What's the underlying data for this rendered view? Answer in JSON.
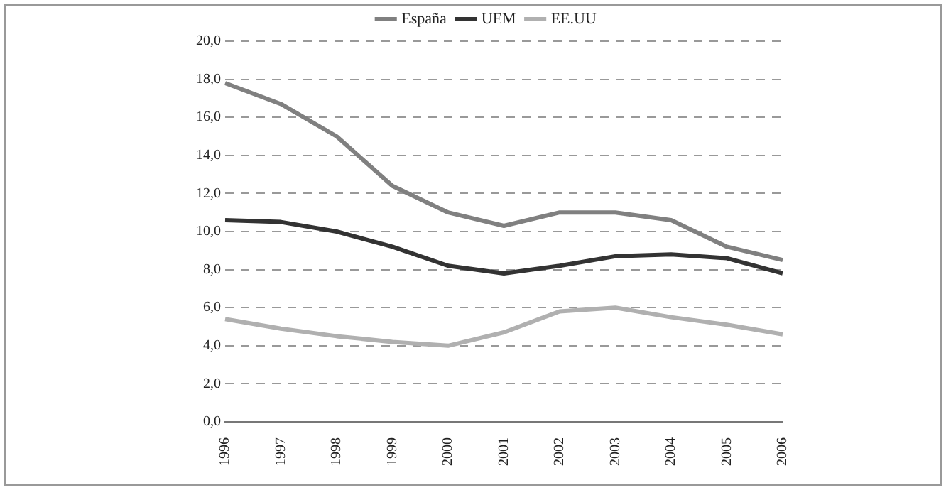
{
  "chart_data": {
    "type": "line",
    "categories": [
      "1996",
      "1997",
      "1998",
      "1999",
      "2000",
      "2001",
      "2002",
      "2003",
      "2004",
      "2005",
      "2006"
    ],
    "series": [
      {
        "name": "España",
        "color": "#808080",
        "values": [
          17.8,
          16.7,
          15.0,
          12.4,
          11.0,
          10.3,
          11.0,
          11.0,
          10.6,
          9.2,
          8.5
        ]
      },
      {
        "name": "UEM",
        "color": "#333333",
        "values": [
          10.6,
          10.5,
          10.0,
          9.2,
          8.2,
          7.8,
          8.2,
          8.7,
          8.8,
          8.6,
          7.8
        ]
      },
      {
        "name": "EE.UU",
        "color": "#b0b0b0",
        "values": [
          5.4,
          4.9,
          4.5,
          4.2,
          4.0,
          4.7,
          5.8,
          6.0,
          5.5,
          5.1,
          4.6
        ]
      }
    ],
    "ylim": [
      0,
      20
    ],
    "yticks": [
      {
        "value": 0,
        "label": "0,0"
      },
      {
        "value": 2,
        "label": "2,0"
      },
      {
        "value": 4,
        "label": "4,0"
      },
      {
        "value": 6,
        "label": "6,0"
      },
      {
        "value": 8,
        "label": "8,0"
      },
      {
        "value": 10,
        "label": "10,0"
      },
      {
        "value": 12,
        "label": "12,0"
      },
      {
        "value": 14,
        "label": "14,0"
      },
      {
        "value": 16,
        "label": "16,0"
      },
      {
        "value": 18,
        "label": "18,0"
      },
      {
        "value": 20,
        "label": "20,0"
      }
    ],
    "grid": "y",
    "legend": "top",
    "marker": "none",
    "line_style": "solid"
  }
}
